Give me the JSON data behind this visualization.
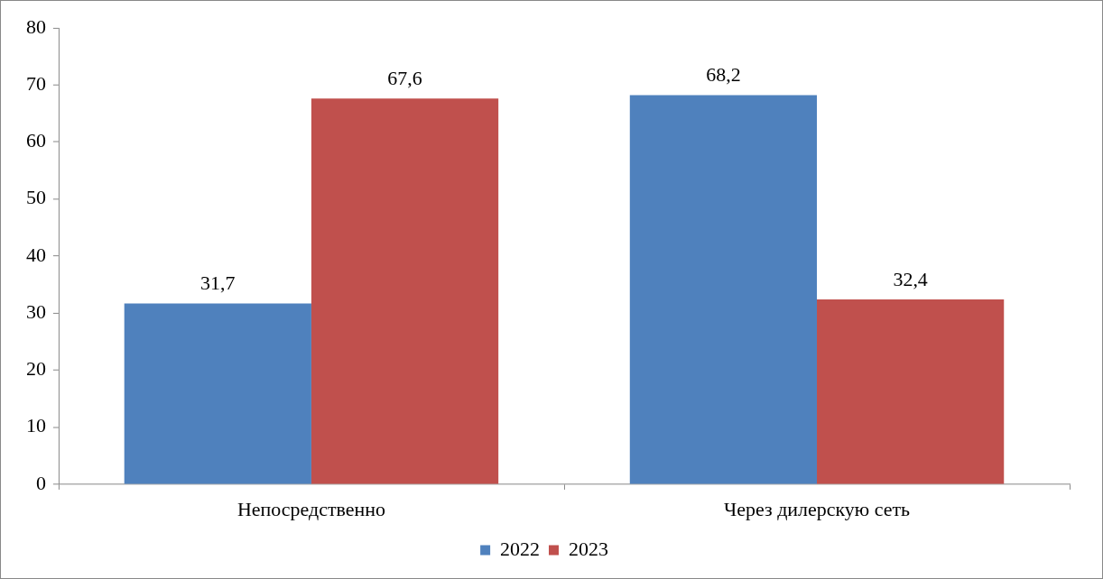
{
  "chart_data": {
    "type": "bar",
    "categories": [
      "Непосредственно",
      "Через дилерскую сеть"
    ],
    "series": [
      {
        "name": "2022",
        "color": "#4f81bd",
        "values": [
          31.7,
          68.2
        ],
        "value_labels": [
          "31,7",
          "68,2"
        ]
      },
      {
        "name": "2023",
        "color": "#c0504d",
        "values": [
          67.6,
          32.4
        ],
        "value_labels": [
          "67,6",
          "32,4"
        ]
      }
    ],
    "ylim": [
      0,
      80
    ],
    "yticks": [
      0,
      10,
      20,
      30,
      40,
      50,
      60,
      70,
      80
    ],
    "grid": false,
    "legend": "bottom"
  }
}
